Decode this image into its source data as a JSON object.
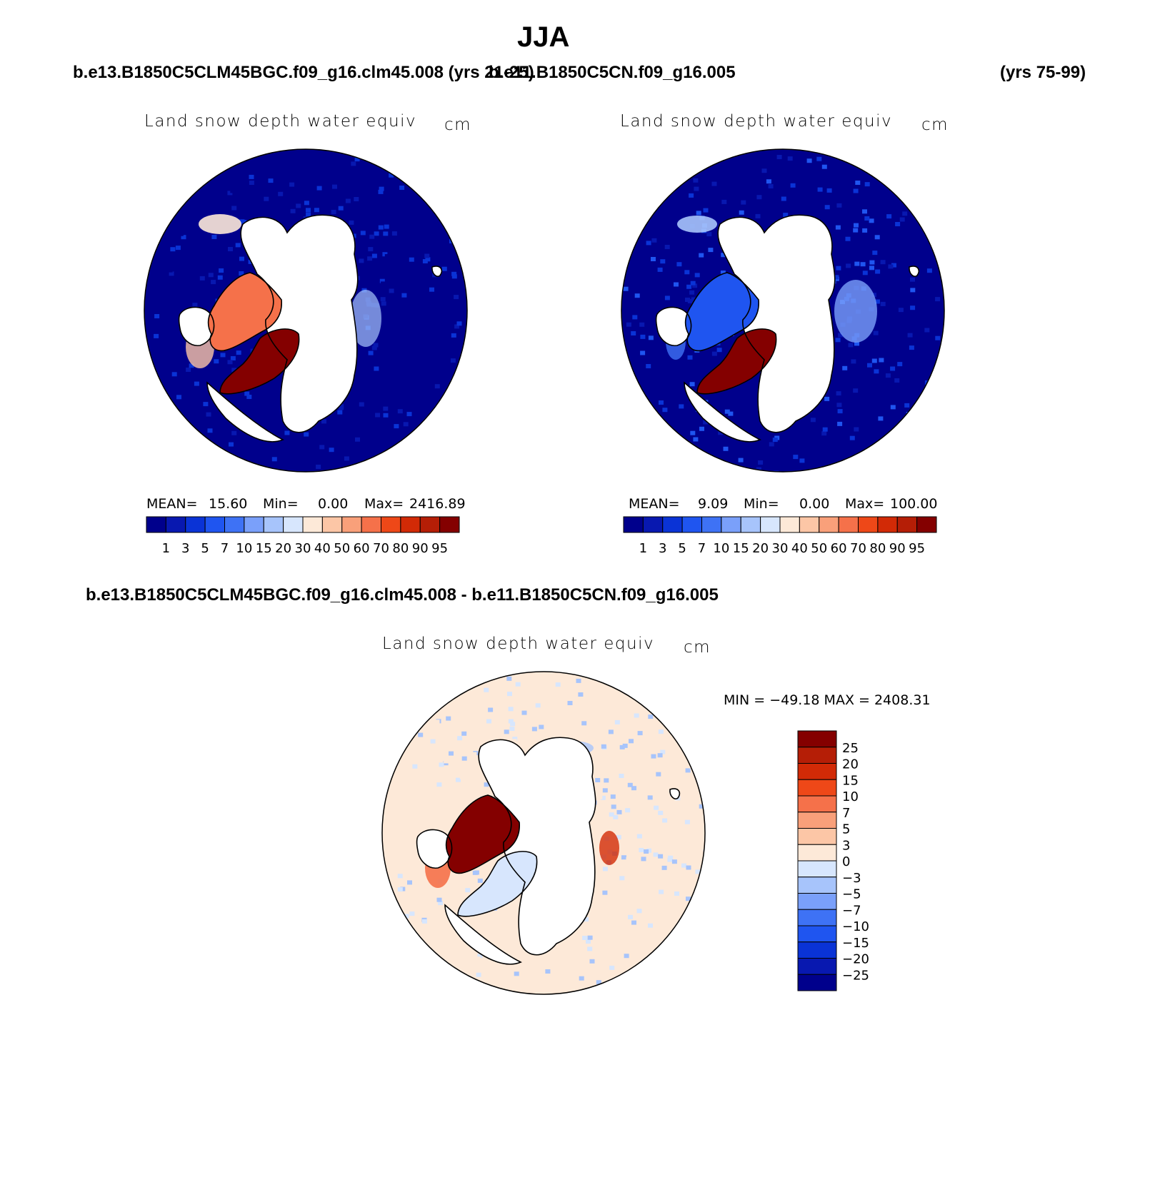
{
  "figure": {
    "season": "JJA",
    "case1_label": "b.e13.B1850C5CLM45BGC.f09_g16.clm45.008 (yrs 21-25)",
    "case2_label": "b.e11.B1850C5CN.f09_g16.005",
    "case2_years": "(yrs 75-99)",
    "diff_label": "b.e13.B1850C5CLM45BGC.f09_g16.clm45.008 - b.e11.B1850C5CN.f09_g16.005"
  },
  "panels": [
    {
      "variable": "Land snow depth water equiv",
      "units": "cm",
      "stats": {
        "mean_label": "MEAN=",
        "mean": "15.60",
        "min_label": "Min=",
        "min": "0.00",
        "max_label": "Max=",
        "max": "2416.89"
      }
    },
    {
      "variable": "Land snow depth water equiv",
      "units": "cm",
      "stats": {
        "mean_label": "MEAN=",
        "mean": "9.09",
        "min_label": "Min=",
        "min": "0.00",
        "max_label": "Max=",
        "max": "100.00"
      }
    },
    {
      "variable": "Land snow depth water equiv",
      "units": "cm",
      "minmax": "MIN = −49.18  MAX = 2408.31"
    }
  ],
  "chart_data": [
    {
      "type": "heatmap",
      "projection": "north polar stereographic",
      "title": "Land snow depth water equiv",
      "units": "cm",
      "levels": [
        "1",
        "3",
        "5",
        "7",
        "10",
        "15",
        "20",
        "30",
        "40",
        "50",
        "60",
        "70",
        "80",
        "90",
        "95"
      ],
      "colors": [
        "#00008c",
        "#0818b0",
        "#0a33d6",
        "#1f55f0",
        "#3e72f5",
        "#7aa0fa",
        "#a7c4fb",
        "#d7e6fd",
        "#fde9d8",
        "#fcc6a6",
        "#f9a07a",
        "#f5714a",
        "#ee4818",
        "#d22a06",
        "#b51e06",
        "#840000"
      ],
      "mean": 15.6,
      "min": 0.0,
      "max": 2416.89
    },
    {
      "type": "heatmap",
      "projection": "north polar stereographic",
      "title": "Land snow depth water equiv",
      "units": "cm",
      "levels": [
        "1",
        "3",
        "5",
        "7",
        "10",
        "15",
        "20",
        "30",
        "40",
        "50",
        "60",
        "70",
        "80",
        "90",
        "95"
      ],
      "colors": [
        "#00008c",
        "#0818b0",
        "#0a33d6",
        "#1f55f0",
        "#3e72f5",
        "#7aa0fa",
        "#a7c4fb",
        "#d7e6fd",
        "#fde9d8",
        "#fcc6a6",
        "#f9a07a",
        "#f5714a",
        "#ee4818",
        "#d22a06",
        "#b51e06",
        "#840000"
      ],
      "mean": 9.09,
      "min": 0.0,
      "max": 100.0
    },
    {
      "type": "heatmap",
      "projection": "north polar stereographic",
      "title": "Land snow depth water equiv",
      "units": "cm",
      "levels": [
        "25",
        "20",
        "15",
        "10",
        "7",
        "5",
        "3",
        "0",
        "−3",
        "−5",
        "−7",
        "−10",
        "−15",
        "−20",
        "−25"
      ],
      "colors": [
        "#840000",
        "#b51e06",
        "#d22a06",
        "#ee4818",
        "#f5714a",
        "#f9a07a",
        "#fcc6a6",
        "#fde9d8",
        "#d7e6fd",
        "#a7c4fb",
        "#7aa0fa",
        "#3e72f5",
        "#1f55f0",
        "#0a33d6",
        "#0818b0",
        "#00008c"
      ],
      "min": -49.18,
      "max": 2408.31
    }
  ]
}
